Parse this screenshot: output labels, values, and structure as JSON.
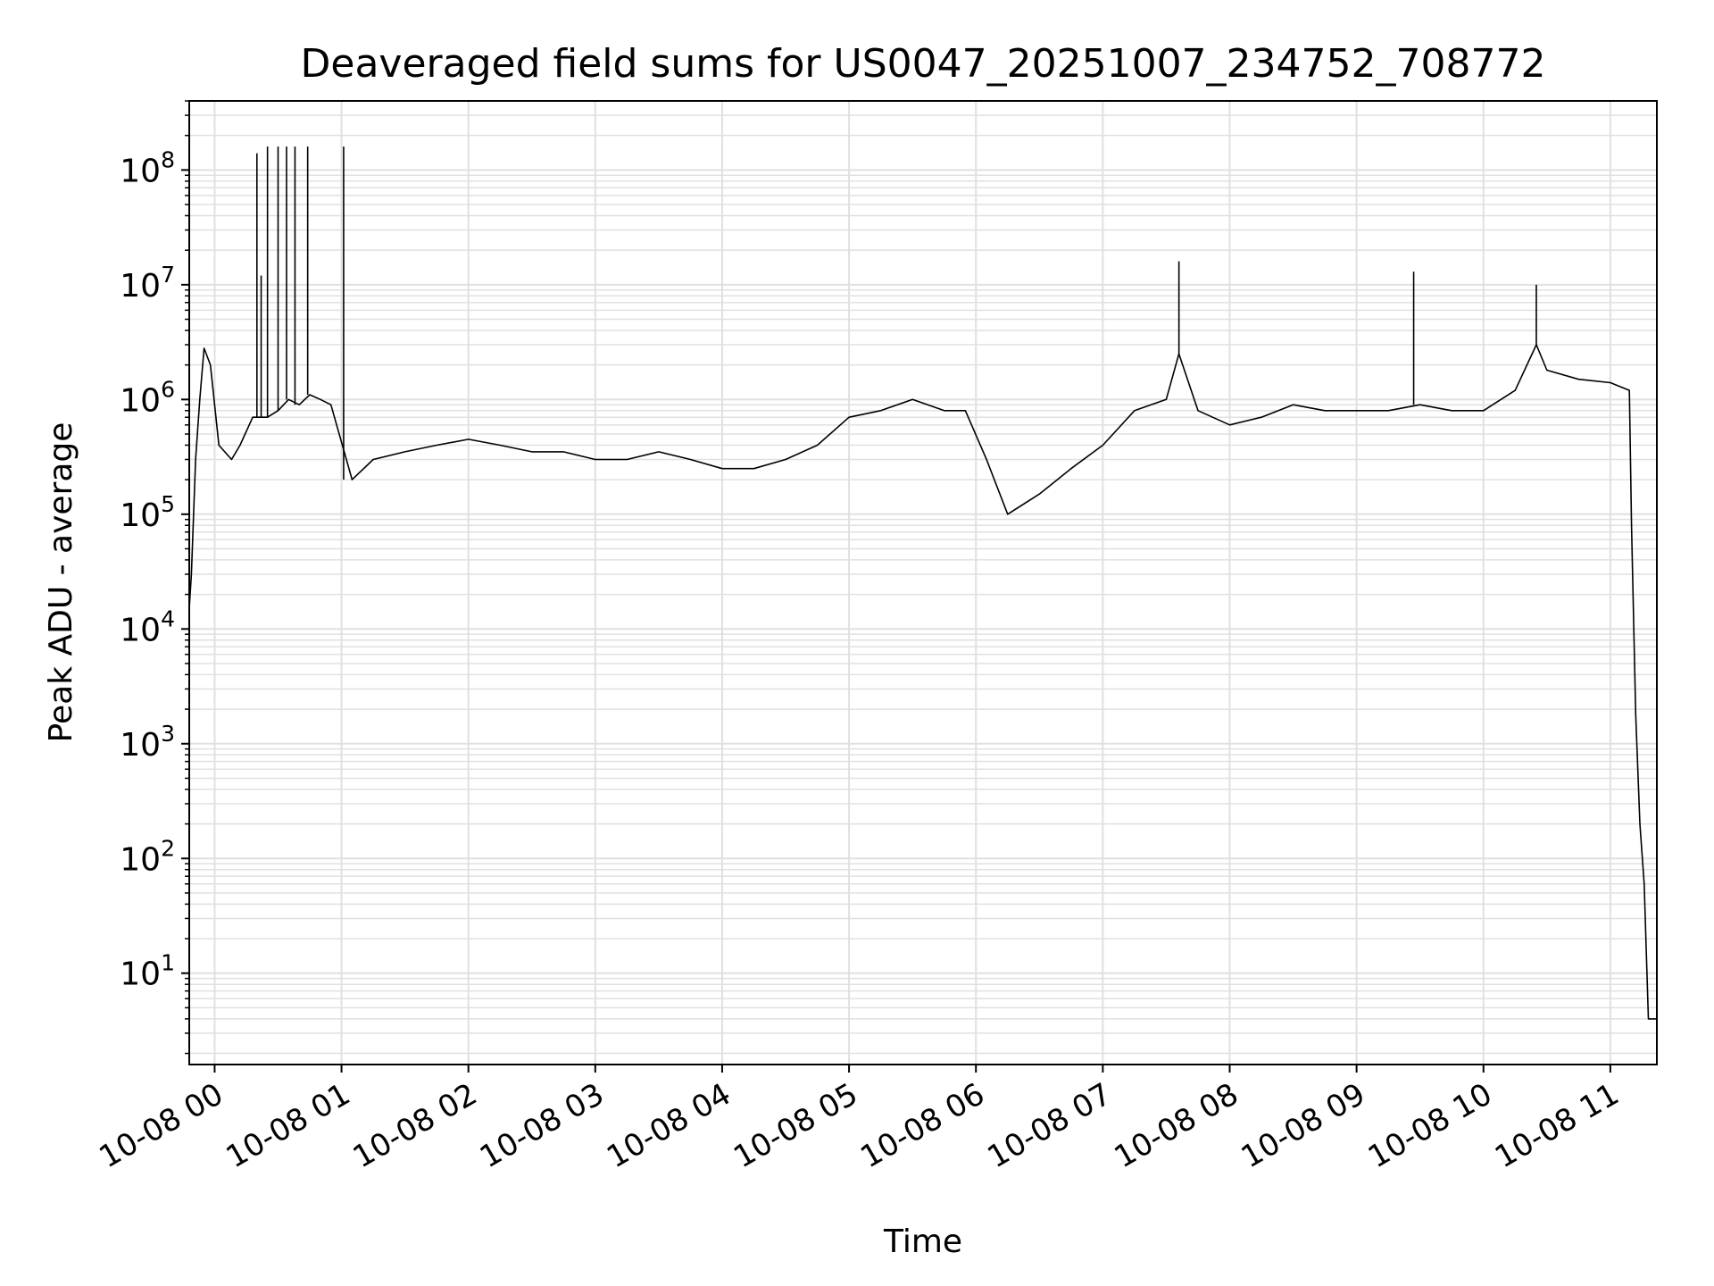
{
  "chart_data": {
    "type": "line",
    "title": "Deaveraged field sums for US0047_20251007_234752_708772",
    "xlabel": "Time",
    "ylabel": "Peak ADU - average",
    "y_scale": "log",
    "ylim": [
      1.6,
      400000000
    ],
    "xlim": [
      "2025-10-07 23:48",
      "2025-10-08 11:22"
    ],
    "grid": true,
    "grid_color": "#e0e0e0",
    "line_color": "#000000",
    "x_ticks": [
      {
        "t": "2025-10-08 00:00",
        "label": "10-08 00"
      },
      {
        "t": "2025-10-08 01:00",
        "label": "10-08 01"
      },
      {
        "t": "2025-10-08 02:00",
        "label": "10-08 02"
      },
      {
        "t": "2025-10-08 03:00",
        "label": "10-08 03"
      },
      {
        "t": "2025-10-08 04:00",
        "label": "10-08 04"
      },
      {
        "t": "2025-10-08 05:00",
        "label": "10-08 05"
      },
      {
        "t": "2025-10-08 06:00",
        "label": "10-08 06"
      },
      {
        "t": "2025-10-08 07:00",
        "label": "10-08 07"
      },
      {
        "t": "2025-10-08 08:00",
        "label": "10-08 08"
      },
      {
        "t": "2025-10-08 09:00",
        "label": "10-08 09"
      },
      {
        "t": "2025-10-08 10:00",
        "label": "10-08 10"
      },
      {
        "t": "2025-10-08 11:00",
        "label": "10-08 11"
      }
    ],
    "y_ticks": [
      {
        "value": 10,
        "base": "10",
        "exp": "1"
      },
      {
        "value": 100,
        "base": "10",
        "exp": "2"
      },
      {
        "value": 1000,
        "base": "10",
        "exp": "3"
      },
      {
        "value": 10000,
        "base": "10",
        "exp": "4"
      },
      {
        "value": 100000,
        "base": "10",
        "exp": "5"
      },
      {
        "value": 1000000,
        "base": "10",
        "exp": "6"
      },
      {
        "value": 10000000,
        "base": "10",
        "exp": "7"
      },
      {
        "value": 100000000,
        "base": "10",
        "exp": "8"
      }
    ],
    "series": [
      {
        "color": "#000000",
        "x": [
          "2025-10-07 23:48",
          "2025-10-07 23:49",
          "2025-10-07 23:51",
          "2025-10-07 23:53",
          "2025-10-07 23:55",
          "2025-10-07 23:58",
          "2025-10-08 00:02",
          "2025-10-08 00:08",
          "2025-10-08 00:12",
          "2025-10-08 00:18",
          "2025-10-08 00:25",
          "2025-10-08 00:30",
          "2025-10-08 00:35",
          "2025-10-08 00:40",
          "2025-10-08 00:45",
          "2025-10-08 00:50",
          "2025-10-08 00:55",
          "2025-10-08 01:05",
          "2025-10-08 01:15",
          "2025-10-08 01:30",
          "2025-10-08 01:45",
          "2025-10-08 02:00",
          "2025-10-08 02:15",
          "2025-10-08 02:30",
          "2025-10-08 02:45",
          "2025-10-08 03:00",
          "2025-10-08 03:15",
          "2025-10-08 03:30",
          "2025-10-08 03:45",
          "2025-10-08 04:00",
          "2025-10-08 04:15",
          "2025-10-08 04:30",
          "2025-10-08 04:45",
          "2025-10-08 05:00",
          "2025-10-08 05:15",
          "2025-10-08 05:30",
          "2025-10-08 05:45",
          "2025-10-08 05:55",
          "2025-10-08 06:05",
          "2025-10-08 06:15",
          "2025-10-08 06:30",
          "2025-10-08 06:45",
          "2025-10-08 07:00",
          "2025-10-08 07:15",
          "2025-10-08 07:30",
          "2025-10-08 07:36",
          "2025-10-08 07:45",
          "2025-10-08 08:00",
          "2025-10-08 08:15",
          "2025-10-08 08:30",
          "2025-10-08 08:45",
          "2025-10-08 09:00",
          "2025-10-08 09:15",
          "2025-10-08 09:30",
          "2025-10-08 09:45",
          "2025-10-08 10:00",
          "2025-10-08 10:15",
          "2025-10-08 10:25",
          "2025-10-08 10:30",
          "2025-10-08 10:45",
          "2025-10-08 11:00",
          "2025-10-08 11:09",
          "2025-10-08 11:10",
          "2025-10-08 11:12",
          "2025-10-08 11:14",
          "2025-10-08 11:16",
          "2025-10-08 11:18",
          "2025-10-08 11:20",
          "2025-10-08 11:22"
        ],
        "y": [
          15000,
          30000,
          300000,
          1000000,
          2800000,
          2000000,
          400000,
          300000,
          400000,
          700000,
          700000,
          800000,
          1000000,
          900000,
          1100000,
          1000000,
          900000,
          200000,
          300000,
          350000,
          400000,
          450000,
          400000,
          350000,
          350000,
          300000,
          300000,
          350000,
          300000,
          250000,
          250000,
          300000,
          400000,
          700000,
          800000,
          1000000,
          800000,
          800000,
          300000,
          100000,
          150000,
          250000,
          400000,
          800000,
          1000000,
          2500000,
          800000,
          600000,
          700000,
          900000,
          800000,
          800000,
          800000,
          900000,
          800000,
          800000,
          1200000,
          3000000,
          1800000,
          1500000,
          1400000,
          1200000,
          80000,
          1800,
          200,
          60,
          4,
          4,
          4
        ]
      }
    ],
    "spikes": [
      {
        "x": "2025-10-08 00:20",
        "y": 140000000
      },
      {
        "x": "2025-10-08 00:22",
        "y": 12000000
      },
      {
        "x": "2025-10-08 00:25",
        "y": 160000000
      },
      {
        "x": "2025-10-08 00:30",
        "y": 160000000
      },
      {
        "x": "2025-10-08 00:34",
        "y": 160000000
      },
      {
        "x": "2025-10-08 00:38",
        "y": 160000000
      },
      {
        "x": "2025-10-08 00:44",
        "y": 160000000
      },
      {
        "x": "2025-10-08 01:01",
        "y": 160000000
      },
      {
        "x": "2025-10-08 07:36",
        "y": 16000000
      },
      {
        "x": "2025-10-08 09:27",
        "y": 13000000
      },
      {
        "x": "2025-10-08 10:25",
        "y": 10000000
      }
    ]
  }
}
